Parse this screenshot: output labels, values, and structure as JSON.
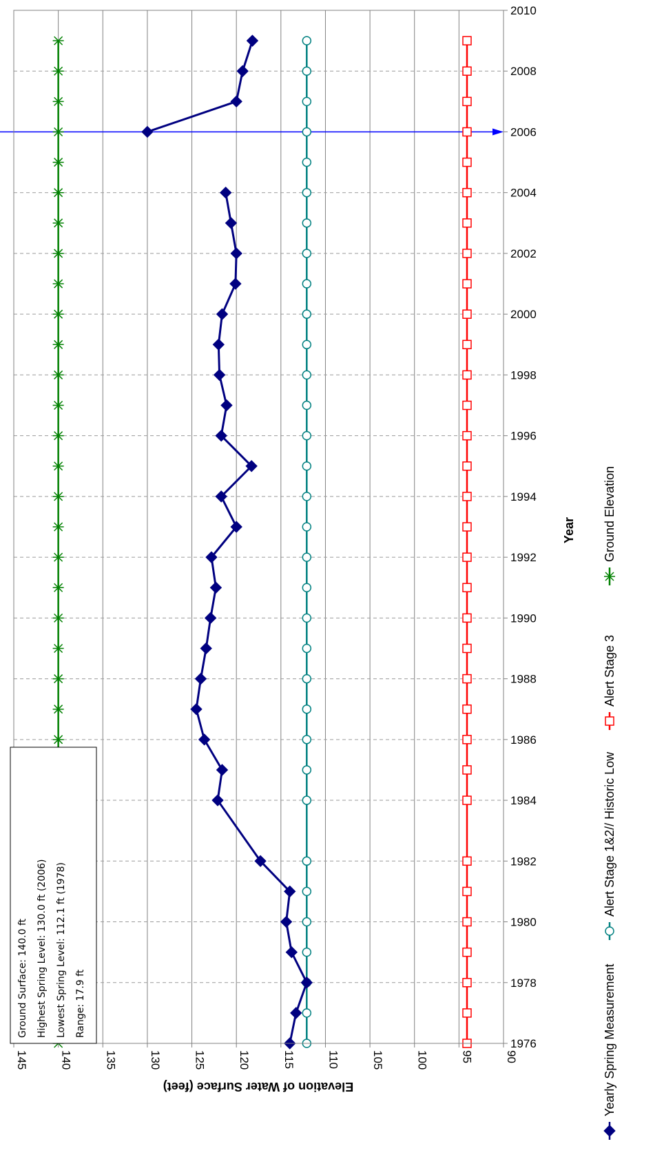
{
  "chart_data": {
    "type": "line",
    "orientation": "rotated-90-clockwise",
    "xlabel": "Year",
    "ylabel": "Elevation of Water Surface (feet)",
    "xlim": [
      1976,
      2010
    ],
    "ylim": [
      90,
      145
    ],
    "x_ticks": [
      "1976",
      "1978",
      "1980",
      "1982",
      "1984",
      "1986",
      "1988",
      "1990",
      "1992",
      "1994",
      "1996",
      "1998",
      "2000",
      "2002",
      "2004",
      "2006",
      "2008",
      "2010"
    ],
    "y_ticks": [
      "145",
      "140",
      "135",
      "130",
      "125",
      "120",
      "115",
      "110",
      "105",
      "100",
      "95",
      "90"
    ],
    "grid": {
      "major_y": "solid",
      "major_x": "dashed"
    },
    "legend_position": "bottom",
    "series": [
      {
        "name": "Yearly Spring Measurement",
        "color": "#000080",
        "marker": "diamond",
        "x": [
          1976,
          1977,
          1978,
          1979,
          1980,
          1981,
          1982,
          1984,
          1985,
          1986,
          1987,
          1988,
          1989,
          1990,
          1991,
          1992,
          1993,
          1994,
          1995,
          1996,
          1997,
          1998,
          1999,
          2000,
          2001,
          2002,
          2003,
          2004,
          2006,
          2007,
          2008,
          2009
        ],
        "y": [
          114.0,
          113.3,
          112.1,
          113.8,
          114.4,
          114.0,
          117.3,
          122.1,
          121.6,
          123.6,
          124.5,
          124.0,
          123.4,
          122.9,
          122.3,
          122.8,
          120.0,
          121.7,
          118.3,
          121.7,
          121.1,
          121.9,
          122.0,
          121.6,
          120.1,
          120.0,
          120.6,
          121.2,
          130.0,
          120.0,
          119.3,
          118.2
        ],
        "gap_after_year": 2004
      },
      {
        "name": "Alert Stage 1&2// Historic Low",
        "color": "#008080",
        "marker": "circle",
        "x": [
          1976,
          1977,
          1978,
          1979,
          1980,
          1981,
          1982,
          1984,
          1985,
          1986,
          1987,
          1988,
          1989,
          1990,
          1991,
          1992,
          1993,
          1994,
          1995,
          1996,
          1997,
          1998,
          1999,
          2000,
          2001,
          2002,
          2003,
          2004,
          2005,
          2006,
          2007,
          2008,
          2009
        ],
        "y": [
          112.1,
          112.1,
          112.1,
          112.1,
          112.1,
          112.1,
          112.1,
          112.1,
          112.1,
          112.1,
          112.1,
          112.1,
          112.1,
          112.1,
          112.1,
          112.1,
          112.1,
          112.1,
          112.1,
          112.1,
          112.1,
          112.1,
          112.1,
          112.1,
          112.1,
          112.1,
          112.1,
          112.1,
          112.1,
          112.1,
          112.1,
          112.1,
          112.1
        ]
      },
      {
        "name": "Alert Stage 3",
        "color": "#ff0000",
        "marker": "square",
        "x": [
          1976,
          1977,
          1978,
          1979,
          1980,
          1981,
          1982,
          1984,
          1985,
          1986,
          1987,
          1988,
          1989,
          1990,
          1991,
          1992,
          1993,
          1994,
          1995,
          1996,
          1997,
          1998,
          1999,
          2000,
          2001,
          2002,
          2003,
          2004,
          2005,
          2006,
          2007,
          2008,
          2009
        ],
        "y": [
          94.1,
          94.1,
          94.1,
          94.1,
          94.1,
          94.1,
          94.1,
          94.1,
          94.1,
          94.1,
          94.1,
          94.1,
          94.1,
          94.1,
          94.1,
          94.1,
          94.1,
          94.1,
          94.1,
          94.1,
          94.1,
          94.1,
          94.1,
          94.1,
          94.1,
          94.1,
          94.1,
          94.1,
          94.1,
          94.1,
          94.1,
          94.1,
          94.1
        ]
      },
      {
        "name": "Ground Elevation",
        "color": "#008000",
        "marker": "x-star",
        "x": [
          1976,
          1977,
          1978,
          1979,
          1980,
          1981,
          1982,
          1984,
          1985,
          1986,
          1987,
          1988,
          1989,
          1990,
          1991,
          1992,
          1993,
          1994,
          1995,
          1996,
          1997,
          1998,
          1999,
          2000,
          2001,
          2002,
          2003,
          2004,
          2005,
          2006,
          2007,
          2008,
          2009
        ],
        "y": [
          140,
          140,
          140,
          140,
          140,
          140,
          140,
          140,
          140,
          140,
          140,
          140,
          140,
          140,
          140,
          140,
          140,
          140,
          140,
          140,
          140,
          140,
          140,
          140,
          140,
          140,
          140,
          140,
          140,
          140,
          140,
          140,
          140
        ]
      }
    ],
    "annotation_arrow": {
      "year": 2006,
      "color": "#0000ff"
    },
    "note_lines": [
      "Ground Surface: 140.0 ft",
      "Highest Spring Level: 130.0 ft (2006)",
      "Lowest Spring Level: 112.1 ft (1978)",
      "Range: 17.9 ft"
    ]
  }
}
